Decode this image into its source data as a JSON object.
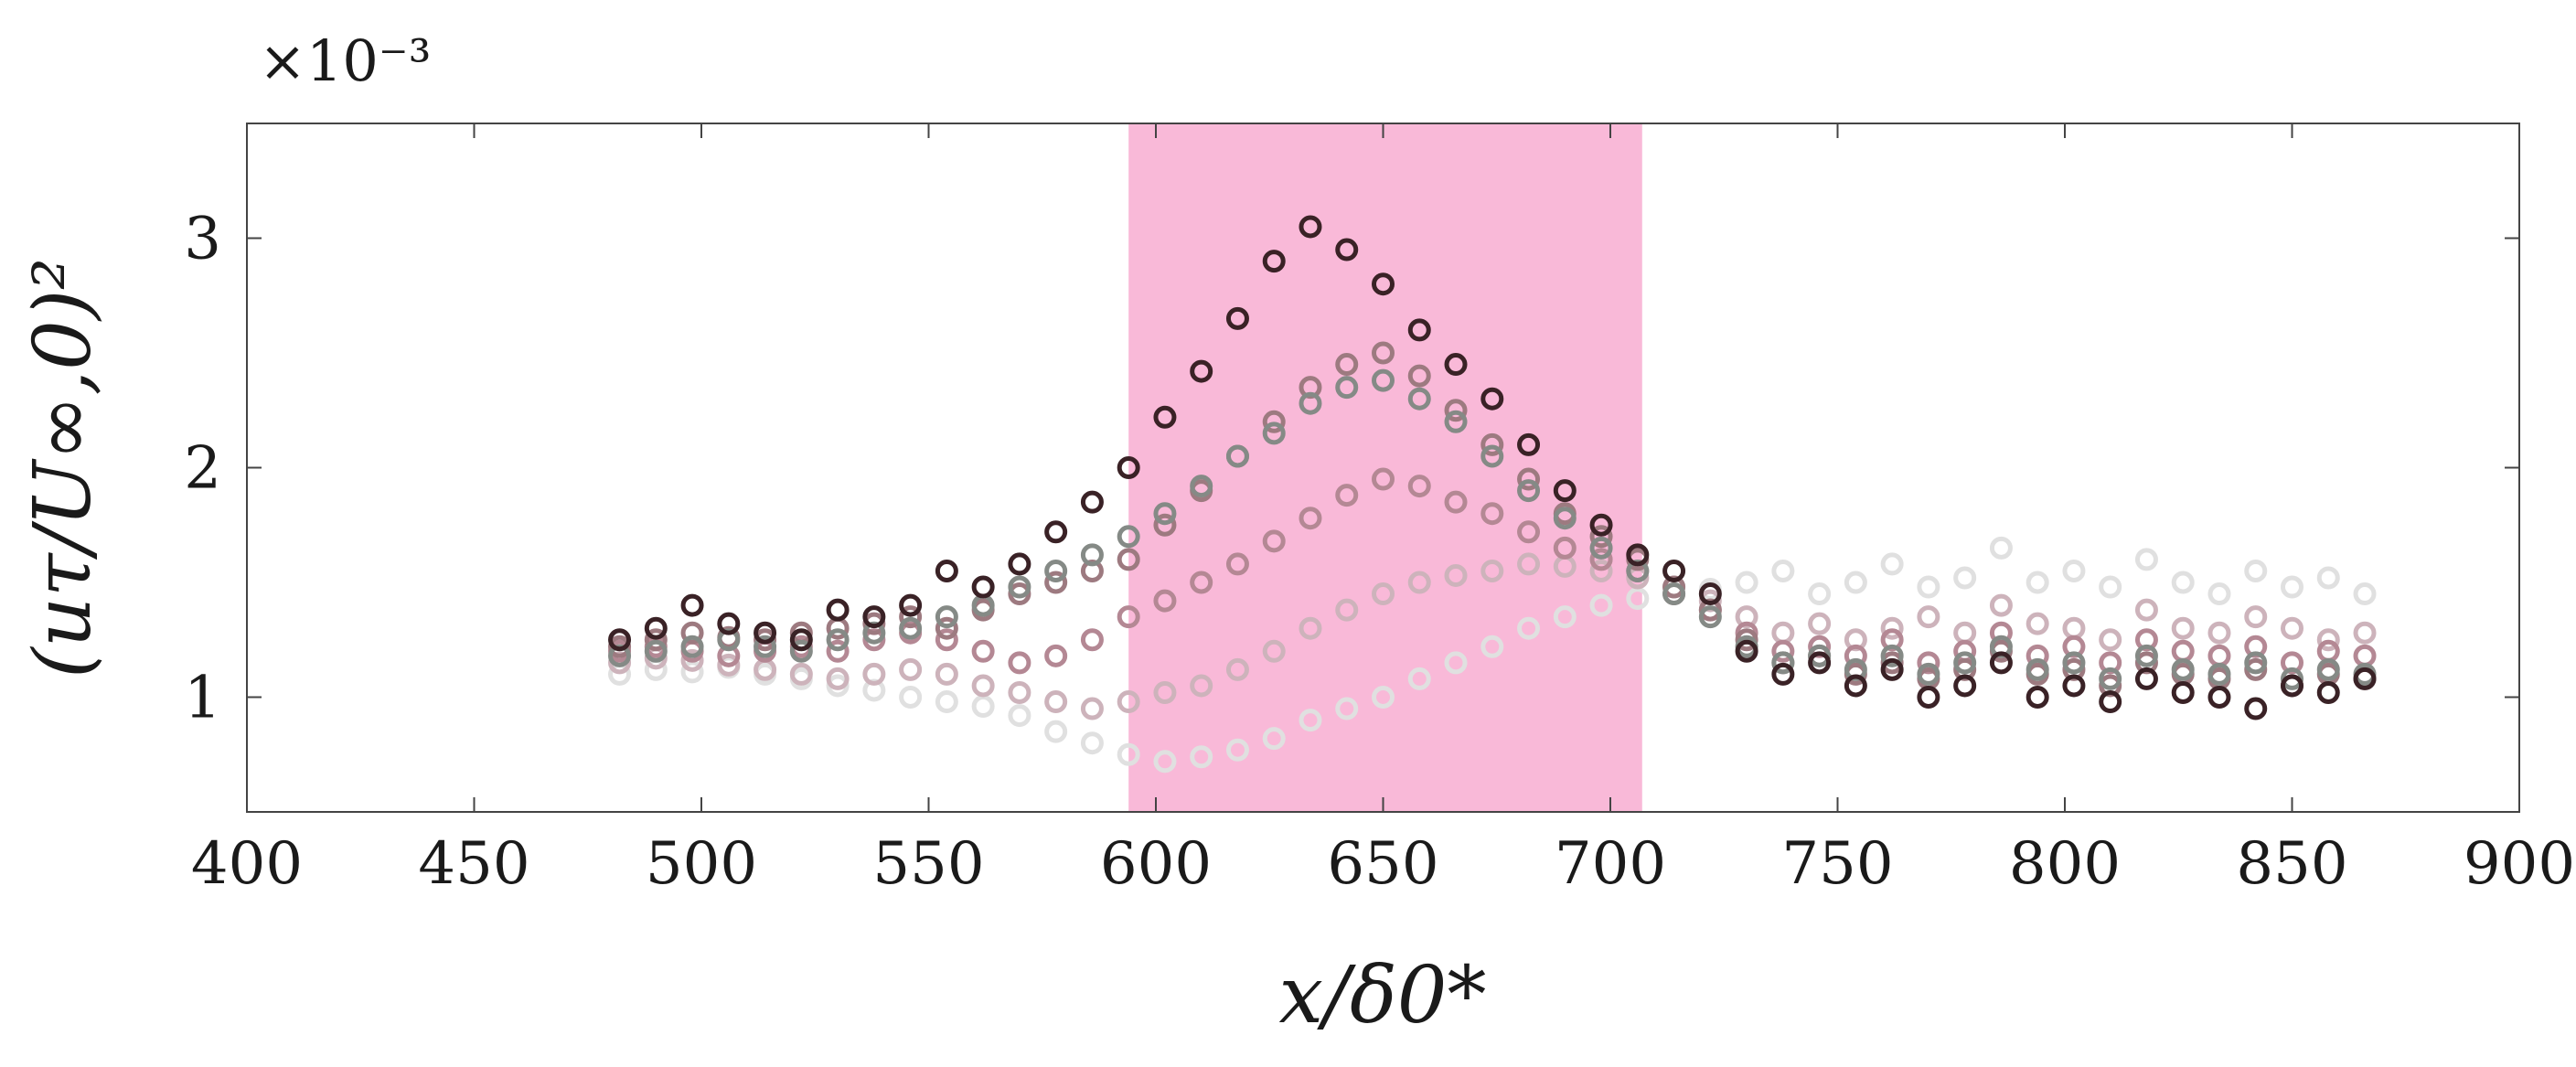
{
  "chart_data": {
    "type": "scatter",
    "title": "",
    "xlabel": "x/δ0*",
    "ylabel": "(uτ/U∞,0)²",
    "multiplier": "×10⁻³",
    "xlim": [
      400,
      900
    ],
    "ylim": [
      0.5,
      3.5
    ],
    "xticks": [
      400,
      450,
      500,
      550,
      600,
      650,
      700,
      750,
      800,
      850,
      900
    ],
    "yticks": [
      1,
      2,
      3
    ],
    "grid": false,
    "highlight_band": {
      "x_start": 594,
      "x_end": 707,
      "color": "#f9b9d8"
    },
    "series": [
      {
        "color": "#e0e0e0",
        "x": [
          482,
          490,
          498,
          506,
          514,
          522,
          530,
          538,
          546,
          554,
          562,
          570,
          578,
          586,
          594,
          602,
          610,
          618,
          626,
          634,
          642,
          650,
          658,
          666,
          674,
          682,
          690,
          698,
          706,
          714,
          722,
          730,
          738,
          746,
          754,
          762,
          770,
          778,
          786,
          794,
          802,
          810,
          818,
          826,
          834,
          842,
          850,
          858,
          866
        ],
        "y": [
          1.1,
          1.12,
          1.11,
          1.13,
          1.1,
          1.08,
          1.05,
          1.03,
          1.0,
          0.98,
          0.96,
          0.92,
          0.85,
          0.8,
          0.75,
          0.72,
          0.74,
          0.77,
          0.82,
          0.9,
          0.95,
          1.0,
          1.08,
          1.15,
          1.22,
          1.3,
          1.35,
          1.4,
          1.43,
          1.45,
          1.47,
          1.5,
          1.55,
          1.45,
          1.5,
          1.58,
          1.48,
          1.52,
          1.65,
          1.5,
          1.55,
          1.48,
          1.6,
          1.5,
          1.45,
          1.55,
          1.48,
          1.52,
          1.45
        ]
      },
      {
        "color": "#cdb3bb",
        "x": [
          482,
          490,
          498,
          506,
          514,
          522,
          530,
          538,
          546,
          554,
          562,
          570,
          578,
          586,
          594,
          602,
          610,
          618,
          626,
          634,
          642,
          650,
          658,
          666,
          674,
          682,
          690,
          698,
          706,
          714,
          722,
          730,
          738,
          746,
          754,
          762,
          770,
          778,
          786,
          794,
          802,
          810,
          818,
          826,
          834,
          842,
          850,
          858,
          866
        ],
        "y": [
          1.15,
          1.17,
          1.16,
          1.14,
          1.12,
          1.1,
          1.08,
          1.1,
          1.12,
          1.1,
          1.05,
          1.02,
          0.98,
          0.95,
          0.98,
          1.02,
          1.05,
          1.12,
          1.2,
          1.3,
          1.38,
          1.45,
          1.5,
          1.53,
          1.55,
          1.58,
          1.57,
          1.55,
          1.52,
          1.48,
          1.42,
          1.35,
          1.28,
          1.32,
          1.25,
          1.3,
          1.35,
          1.28,
          1.4,
          1.32,
          1.3,
          1.25,
          1.38,
          1.3,
          1.28,
          1.35,
          1.3,
          1.25,
          1.28
        ]
      },
      {
        "color": "#b48894",
        "x": [
          482,
          490,
          498,
          506,
          514,
          522,
          530,
          538,
          546,
          554,
          562,
          570,
          578,
          586,
          594,
          602,
          610,
          618,
          626,
          634,
          642,
          650,
          658,
          666,
          674,
          682,
          690,
          698,
          706,
          714,
          722,
          730,
          738,
          746,
          754,
          762,
          770,
          778,
          786,
          794,
          802,
          810,
          818,
          826,
          834,
          842,
          850,
          858,
          866
        ],
        "y": [
          1.2,
          1.22,
          1.2,
          1.18,
          1.2,
          1.22,
          1.2,
          1.25,
          1.28,
          1.25,
          1.2,
          1.15,
          1.18,
          1.25,
          1.35,
          1.42,
          1.5,
          1.58,
          1.68,
          1.78,
          1.88,
          1.95,
          1.92,
          1.85,
          1.8,
          1.72,
          1.65,
          1.6,
          1.55,
          1.45,
          1.38,
          1.28,
          1.2,
          1.22,
          1.18,
          1.25,
          1.15,
          1.2,
          1.28,
          1.18,
          1.22,
          1.15,
          1.25,
          1.2,
          1.18,
          1.22,
          1.15,
          1.2,
          1.18
        ]
      },
      {
        "color": "#9d7a80",
        "x": [
          482,
          490,
          498,
          506,
          514,
          522,
          530,
          538,
          546,
          554,
          562,
          570,
          578,
          586,
          594,
          602,
          610,
          618,
          626,
          634,
          642,
          650,
          658,
          666,
          674,
          682,
          690,
          698,
          706,
          714,
          722,
          730,
          738,
          746,
          754,
          762,
          770,
          778,
          786,
          794,
          802,
          810,
          818,
          826,
          834,
          842,
          850,
          858,
          866
        ],
        "y": [
          1.22,
          1.25,
          1.28,
          1.26,
          1.25,
          1.28,
          1.3,
          1.32,
          1.35,
          1.3,
          1.38,
          1.45,
          1.5,
          1.55,
          1.6,
          1.75,
          1.9,
          2.05,
          2.2,
          2.35,
          2.45,
          2.5,
          2.4,
          2.25,
          2.1,
          1.95,
          1.8,
          1.7,
          1.6,
          1.48,
          1.38,
          1.25,
          1.15,
          1.18,
          1.1,
          1.15,
          1.08,
          1.12,
          1.2,
          1.1,
          1.12,
          1.05,
          1.15,
          1.1,
          1.08,
          1.12,
          1.05,
          1.1,
          1.08
        ]
      },
      {
        "color": "#858a86",
        "x": [
          482,
          490,
          498,
          506,
          514,
          522,
          530,
          538,
          546,
          554,
          562,
          570,
          578,
          586,
          594,
          602,
          610,
          618,
          626,
          634,
          642,
          650,
          658,
          666,
          674,
          682,
          690,
          698,
          706,
          714,
          722,
          730,
          738,
          746,
          754,
          762,
          770,
          778,
          786,
          794,
          802,
          810,
          818,
          826,
          834,
          842,
          850,
          858,
          866
        ],
        "y": [
          1.18,
          1.2,
          1.22,
          1.25,
          1.22,
          1.2,
          1.25,
          1.28,
          1.3,
          1.35,
          1.4,
          1.48,
          1.55,
          1.62,
          1.7,
          1.8,
          1.92,
          2.05,
          2.15,
          2.28,
          2.35,
          2.38,
          2.3,
          2.2,
          2.05,
          1.9,
          1.78,
          1.65,
          1.55,
          1.45,
          1.35,
          1.22,
          1.15,
          1.18,
          1.12,
          1.18,
          1.1,
          1.15,
          1.22,
          1.12,
          1.15,
          1.08,
          1.18,
          1.12,
          1.1,
          1.15,
          1.08,
          1.12,
          1.1
        ]
      },
      {
        "color": "#3a2226",
        "x": [
          482,
          490,
          498,
          506,
          514,
          522,
          530,
          538,
          546,
          554,
          562,
          570,
          578,
          586,
          594,
          602,
          610,
          618,
          626,
          634,
          642,
          650,
          658,
          666,
          674,
          682,
          690,
          698,
          706,
          714,
          722,
          730,
          738,
          746,
          754,
          762,
          770,
          778,
          786,
          794,
          802,
          810,
          818,
          826,
          834,
          842,
          850,
          858,
          866
        ],
        "y": [
          1.25,
          1.3,
          1.4,
          1.32,
          1.28,
          1.25,
          1.38,
          1.35,
          1.4,
          1.55,
          1.48,
          1.58,
          1.72,
          1.85,
          2.0,
          2.22,
          2.42,
          2.65,
          2.9,
          3.05,
          2.95,
          2.8,
          2.6,
          2.45,
          2.3,
          2.1,
          1.9,
          1.75,
          1.62,
          1.55,
          1.45,
          1.2,
          1.1,
          1.15,
          1.05,
          1.12,
          1.0,
          1.05,
          1.15,
          1.0,
          1.05,
          0.98,
          1.08,
          1.02,
          1.0,
          0.95,
          1.05,
          1.02,
          1.08
        ]
      }
    ]
  }
}
